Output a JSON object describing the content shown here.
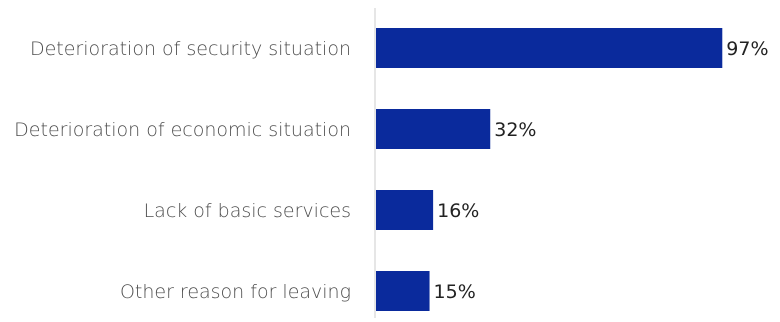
{
  "chart_data": {
    "type": "bar",
    "orientation": "horizontal",
    "categories": [
      "Deterioration of security situation",
      "Deterioration of economic situation",
      "Lack of basic services",
      "Other reason for leaving"
    ],
    "values": [
      97,
      32,
      16,
      15
    ],
    "value_labels": [
      "97%",
      "32%",
      "16%",
      "15%"
    ],
    "unit": "%",
    "xlim": [
      0,
      100
    ],
    "grid": false,
    "legend": "none",
    "bar_color": "#0a2a9c",
    "axis_color": "#cccccc"
  }
}
